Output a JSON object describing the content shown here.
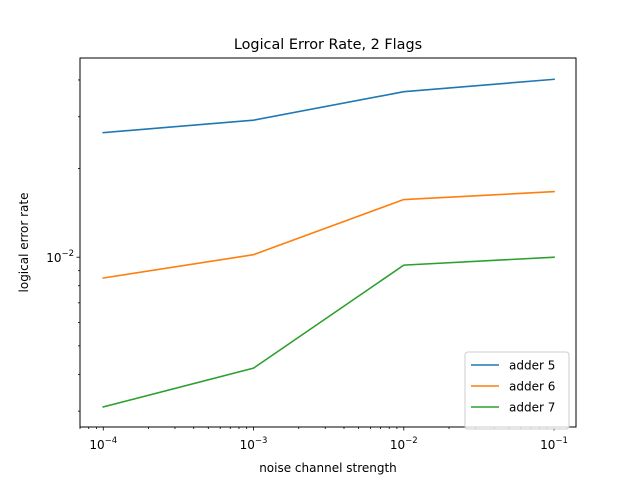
{
  "chart_data": {
    "type": "line",
    "title": "Logical Error Rate, 2 Flags",
    "xlabel": "noise channel strength",
    "ylabel": "logical error rate",
    "xscale": "log",
    "yscale": "log",
    "xlim": [
      7e-05,
      0.14
    ],
    "ylim": [
      0.00265,
      0.0475
    ],
    "x": [
      0.0001,
      0.001,
      0.01,
      0.1
    ],
    "xticks": [
      {
        "value": 0.0001,
        "base": "10",
        "exp": "−4"
      },
      {
        "value": 0.001,
        "base": "10",
        "exp": "−3"
      },
      {
        "value": 0.01,
        "base": "10",
        "exp": "−2"
      },
      {
        "value": 0.1,
        "base": "10",
        "exp": "−1"
      }
    ],
    "yticks": [
      {
        "value": 0.01,
        "base": "10",
        "exp": "−2"
      }
    ],
    "grid": false,
    "legend_position": "lower right",
    "series": [
      {
        "name": "adder 5",
        "color": "#1f77b4",
        "values": [
          0.0265,
          0.0292,
          0.0365,
          0.0402
        ]
      },
      {
        "name": "adder 6",
        "color": "#ff7f0e",
        "values": [
          0.0085,
          0.0102,
          0.0157,
          0.0167
        ]
      },
      {
        "name": "adder 7",
        "color": "#2ca02c",
        "values": [
          0.0031,
          0.0042,
          0.0094,
          0.01
        ]
      }
    ]
  }
}
